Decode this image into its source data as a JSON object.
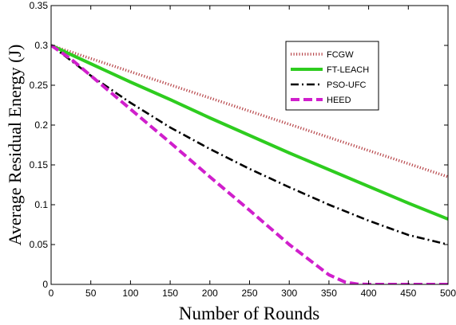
{
  "chart_data": {
    "type": "line",
    "title": "",
    "xlabel": "Number of Rounds",
    "ylabel": "Average Residual Energy (J)",
    "xlim": [
      0,
      500
    ],
    "ylim": [
      0,
      0.35
    ],
    "xticks": [
      "0",
      "50",
      "100",
      "150",
      "200",
      "250",
      "300",
      "350",
      "400",
      "450",
      "500"
    ],
    "yticks": [
      "0",
      "0.05",
      "0.1",
      "0.15",
      "0.2",
      "0.25",
      "0.3",
      "0.35"
    ],
    "grid": false,
    "legend_position": "top-right",
    "series": [
      {
        "name": "FCGW",
        "color": "#b8474b",
        "style": "dotted",
        "x": [
          0,
          100,
          200,
          300,
          400,
          500
        ],
        "y": [
          0.3,
          0.267,
          0.234,
          0.201,
          0.168,
          0.135
        ]
      },
      {
        "name": "FT-LEACH",
        "color": "#2ecc1f",
        "style": "solid",
        "x": [
          0,
          50,
          100,
          150,
          200,
          250,
          300,
          350,
          400,
          450,
          500
        ],
        "y": [
          0.3,
          0.277,
          0.254,
          0.232,
          0.209,
          0.187,
          0.165,
          0.144,
          0.123,
          0.102,
          0.082
        ]
      },
      {
        "name": "PSO-UFC",
        "color": "#000000",
        "style": "dashdot",
        "x": [
          0,
          50,
          100,
          150,
          200,
          250,
          300,
          350,
          400,
          450,
          500
        ],
        "y": [
          0.3,
          0.262,
          0.228,
          0.197,
          0.17,
          0.145,
          0.122,
          0.1,
          0.08,
          0.062,
          0.05
        ]
      },
      {
        "name": "HEED",
        "color": "#d01fcc",
        "style": "dashed",
        "x": [
          0,
          25,
          50,
          100,
          150,
          200,
          250,
          300,
          350,
          370,
          385,
          400,
          450,
          500
        ],
        "y": [
          0.3,
          0.283,
          0.262,
          0.22,
          0.178,
          0.135,
          0.093,
          0.05,
          0.012,
          0.003,
          0.0005,
          0,
          0,
          0
        ]
      }
    ]
  }
}
